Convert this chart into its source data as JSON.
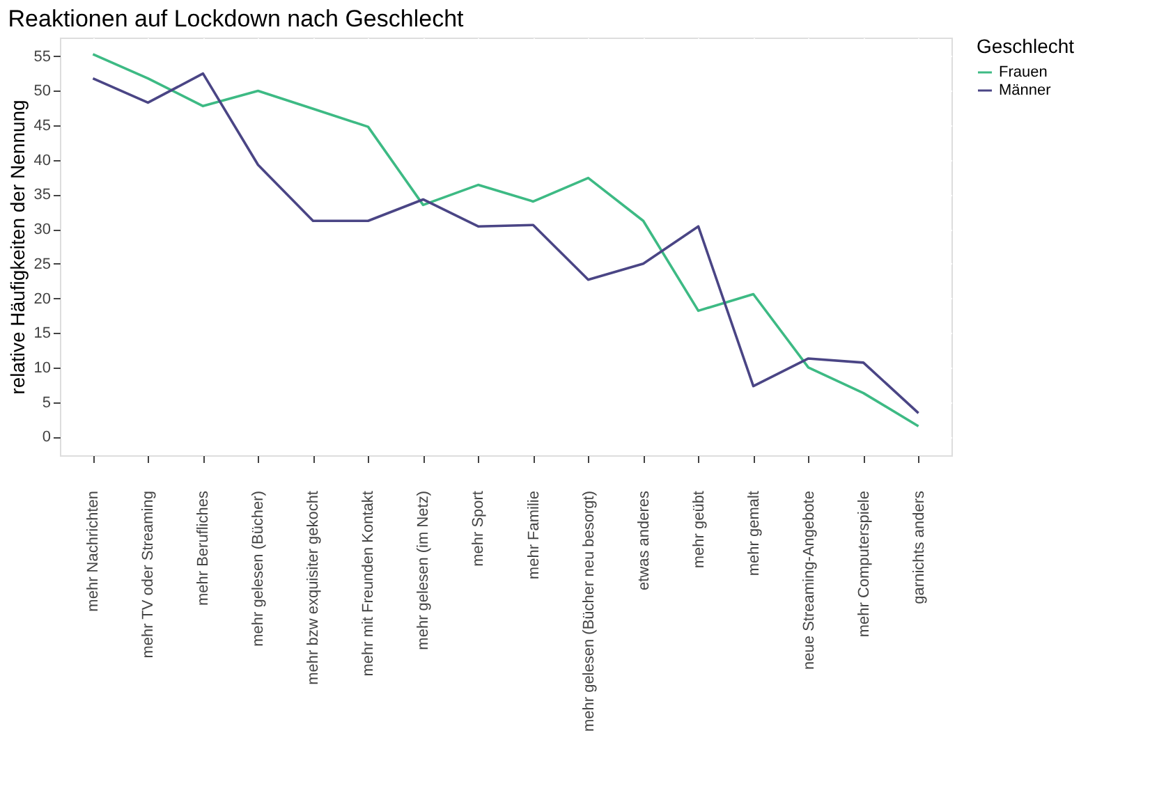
{
  "chart_data": {
    "type": "line",
    "title": "Reaktionen auf Lockdown nach Geschlecht",
    "ylabel": "relative Häufigkeiten der Nennung",
    "legend_title": "Geschlecht",
    "categories": [
      "mehr Nachrichten",
      "mehr TV oder Streaming",
      "mehr Berufliches",
      "mehr gelesen (Bücher)",
      "mehr bzw exquisiter gekocht",
      "mehr mit Freunden Kontakt",
      "mehr gelesen (im Netz)",
      "mehr Sport",
      "mehr Familie",
      "mehr gelesen (Bücher neu besorgt)",
      "etwas anderes",
      "mehr geübt",
      "mehr gemalt",
      "neue Streaming-Angebote",
      "mehr Computerspiele",
      "garnichts anders"
    ],
    "series": [
      {
        "name": "Frauen",
        "color": "#3dba84",
        "values": [
          55.3,
          51.8,
          47.8,
          50,
          47.4,
          44.8,
          33.5,
          36.4,
          34,
          37.4,
          31.2,
          18.2,
          20.6,
          10,
          6.3,
          1.5
        ]
      },
      {
        "name": "Männer",
        "color": "#4a4585",
        "values": [
          51.8,
          48.3,
          52.5,
          39.3,
          31.2,
          31.2,
          34.3,
          30.4,
          30.6,
          22.7,
          25,
          30.4,
          7.3,
          11.3,
          10.7,
          3.4
        ]
      }
    ],
    "ylim": [
      -2.7,
      57.7
    ],
    "yticks": [
      0,
      5,
      10,
      15,
      20,
      25,
      30,
      35,
      40,
      45,
      50,
      55
    ],
    "grid": true,
    "legend": "right",
    "line_style": "solid"
  }
}
